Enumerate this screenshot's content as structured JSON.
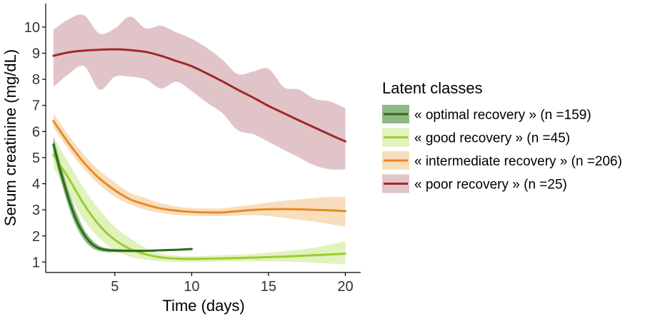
{
  "chart_data": {
    "type": "line",
    "xlabel": "Time (days)",
    "ylabel": "Serum creatinine (mg/dL)",
    "xlim": [
      0.5,
      21
    ],
    "ylim": [
      0.6,
      10.9
    ],
    "xticks": [
      5,
      10,
      15,
      20
    ],
    "yticks": [
      1,
      2,
      3,
      4,
      5,
      6,
      7,
      8,
      9,
      10
    ],
    "grid": false,
    "legend": {
      "title": "Latent classes",
      "placement": "right"
    },
    "series": [
      {
        "name": "« optimal recovery » (n =159)",
        "color": "#2d6a1e",
        "band_color": "#6aa05a",
        "x": [
          1,
          1.5,
          2,
          2.5,
          3,
          3.5,
          4,
          4.5,
          5,
          6,
          7,
          8,
          9,
          10
        ],
        "y": [
          5.5,
          4.4,
          3.4,
          2.6,
          2.05,
          1.7,
          1.52,
          1.46,
          1.44,
          1.43,
          1.43,
          1.45,
          1.47,
          1.5
        ],
        "lower": [
          5.2,
          4.1,
          3.1,
          2.35,
          1.85,
          1.55,
          1.42,
          1.38,
          1.38,
          1.38,
          1.39,
          1.41,
          1.43,
          1.46
        ],
        "upper": [
          5.8,
          4.7,
          3.7,
          2.9,
          2.25,
          1.85,
          1.62,
          1.53,
          1.5,
          1.48,
          1.47,
          1.49,
          1.51,
          1.54
        ]
      },
      {
        "name": "« good recovery » (n =45)",
        "color": "#9acd32",
        "band_color": "#d7eda5",
        "x": [
          1,
          2,
          3,
          4,
          5,
          6,
          7,
          8,
          9,
          10,
          12,
          14,
          16,
          18,
          20
        ],
        "y": [
          5.1,
          4.2,
          3.2,
          2.4,
          1.85,
          1.5,
          1.3,
          1.18,
          1.13,
          1.12,
          1.14,
          1.17,
          1.21,
          1.26,
          1.32
        ],
        "lower": [
          4.6,
          3.6,
          2.6,
          1.9,
          1.45,
          1.2,
          1.1,
          1.03,
          1.0,
          1.0,
          1.02,
          1.03,
          1.02,
          0.98,
          0.9
        ],
        "upper": [
          5.8,
          4.8,
          3.8,
          3.0,
          2.35,
          1.9,
          1.55,
          1.32,
          1.25,
          1.22,
          1.26,
          1.31,
          1.42,
          1.55,
          1.8
        ]
      },
      {
        "name": "« intermediate recovery » (n =206)",
        "color": "#e8892a",
        "band_color": "#f6d3a6",
        "x": [
          1,
          2,
          3,
          4,
          5,
          6,
          7,
          8,
          9,
          10,
          11,
          12,
          13,
          14,
          15,
          16,
          17,
          18,
          19,
          20
        ],
        "y": [
          6.4,
          5.55,
          4.8,
          4.2,
          3.75,
          3.4,
          3.2,
          3.05,
          2.97,
          2.92,
          2.9,
          2.9,
          2.95,
          3.0,
          3.02,
          3.03,
          3.02,
          3.0,
          2.98,
          2.95
        ],
        "lower": [
          6.15,
          5.3,
          4.55,
          3.95,
          3.5,
          3.2,
          3.0,
          2.88,
          2.8,
          2.77,
          2.76,
          2.76,
          2.78,
          2.8,
          2.76,
          2.7,
          2.62,
          2.55,
          2.45,
          2.35
        ],
        "upper": [
          6.7,
          5.85,
          5.1,
          4.5,
          4.05,
          3.65,
          3.45,
          3.25,
          3.13,
          3.07,
          3.05,
          3.06,
          3.13,
          3.2,
          3.28,
          3.35,
          3.4,
          3.45,
          3.5,
          3.5
        ]
      },
      {
        "name": "« poor recovery » (n =25)",
        "color": "#a32828",
        "band_color": "#d7b0b6",
        "x": [
          1,
          2,
          3,
          4,
          5,
          6,
          7,
          8,
          9,
          10,
          11,
          12,
          13,
          14,
          15,
          16,
          17,
          18,
          19,
          20
        ],
        "y": [
          8.9,
          9.03,
          9.1,
          9.13,
          9.15,
          9.12,
          9.05,
          8.9,
          8.7,
          8.5,
          8.22,
          7.92,
          7.6,
          7.3,
          6.98,
          6.7,
          6.42,
          6.15,
          5.88,
          5.62
        ],
        "lower": [
          7.7,
          8.2,
          8.5,
          7.6,
          8.1,
          8.1,
          8.0,
          7.65,
          7.9,
          7.55,
          7.1,
          6.7,
          6.05,
          5.9,
          5.6,
          5.3,
          5.0,
          4.7,
          4.55,
          4.55
        ],
        "upper": [
          9.9,
          10.3,
          10.45,
          9.75,
          9.95,
          10.4,
          9.95,
          10.05,
          9.8,
          9.55,
          9.2,
          8.75,
          8.2,
          8.3,
          8.4,
          7.7,
          7.6,
          7.25,
          7.15,
          6.9
        ]
      }
    ]
  }
}
